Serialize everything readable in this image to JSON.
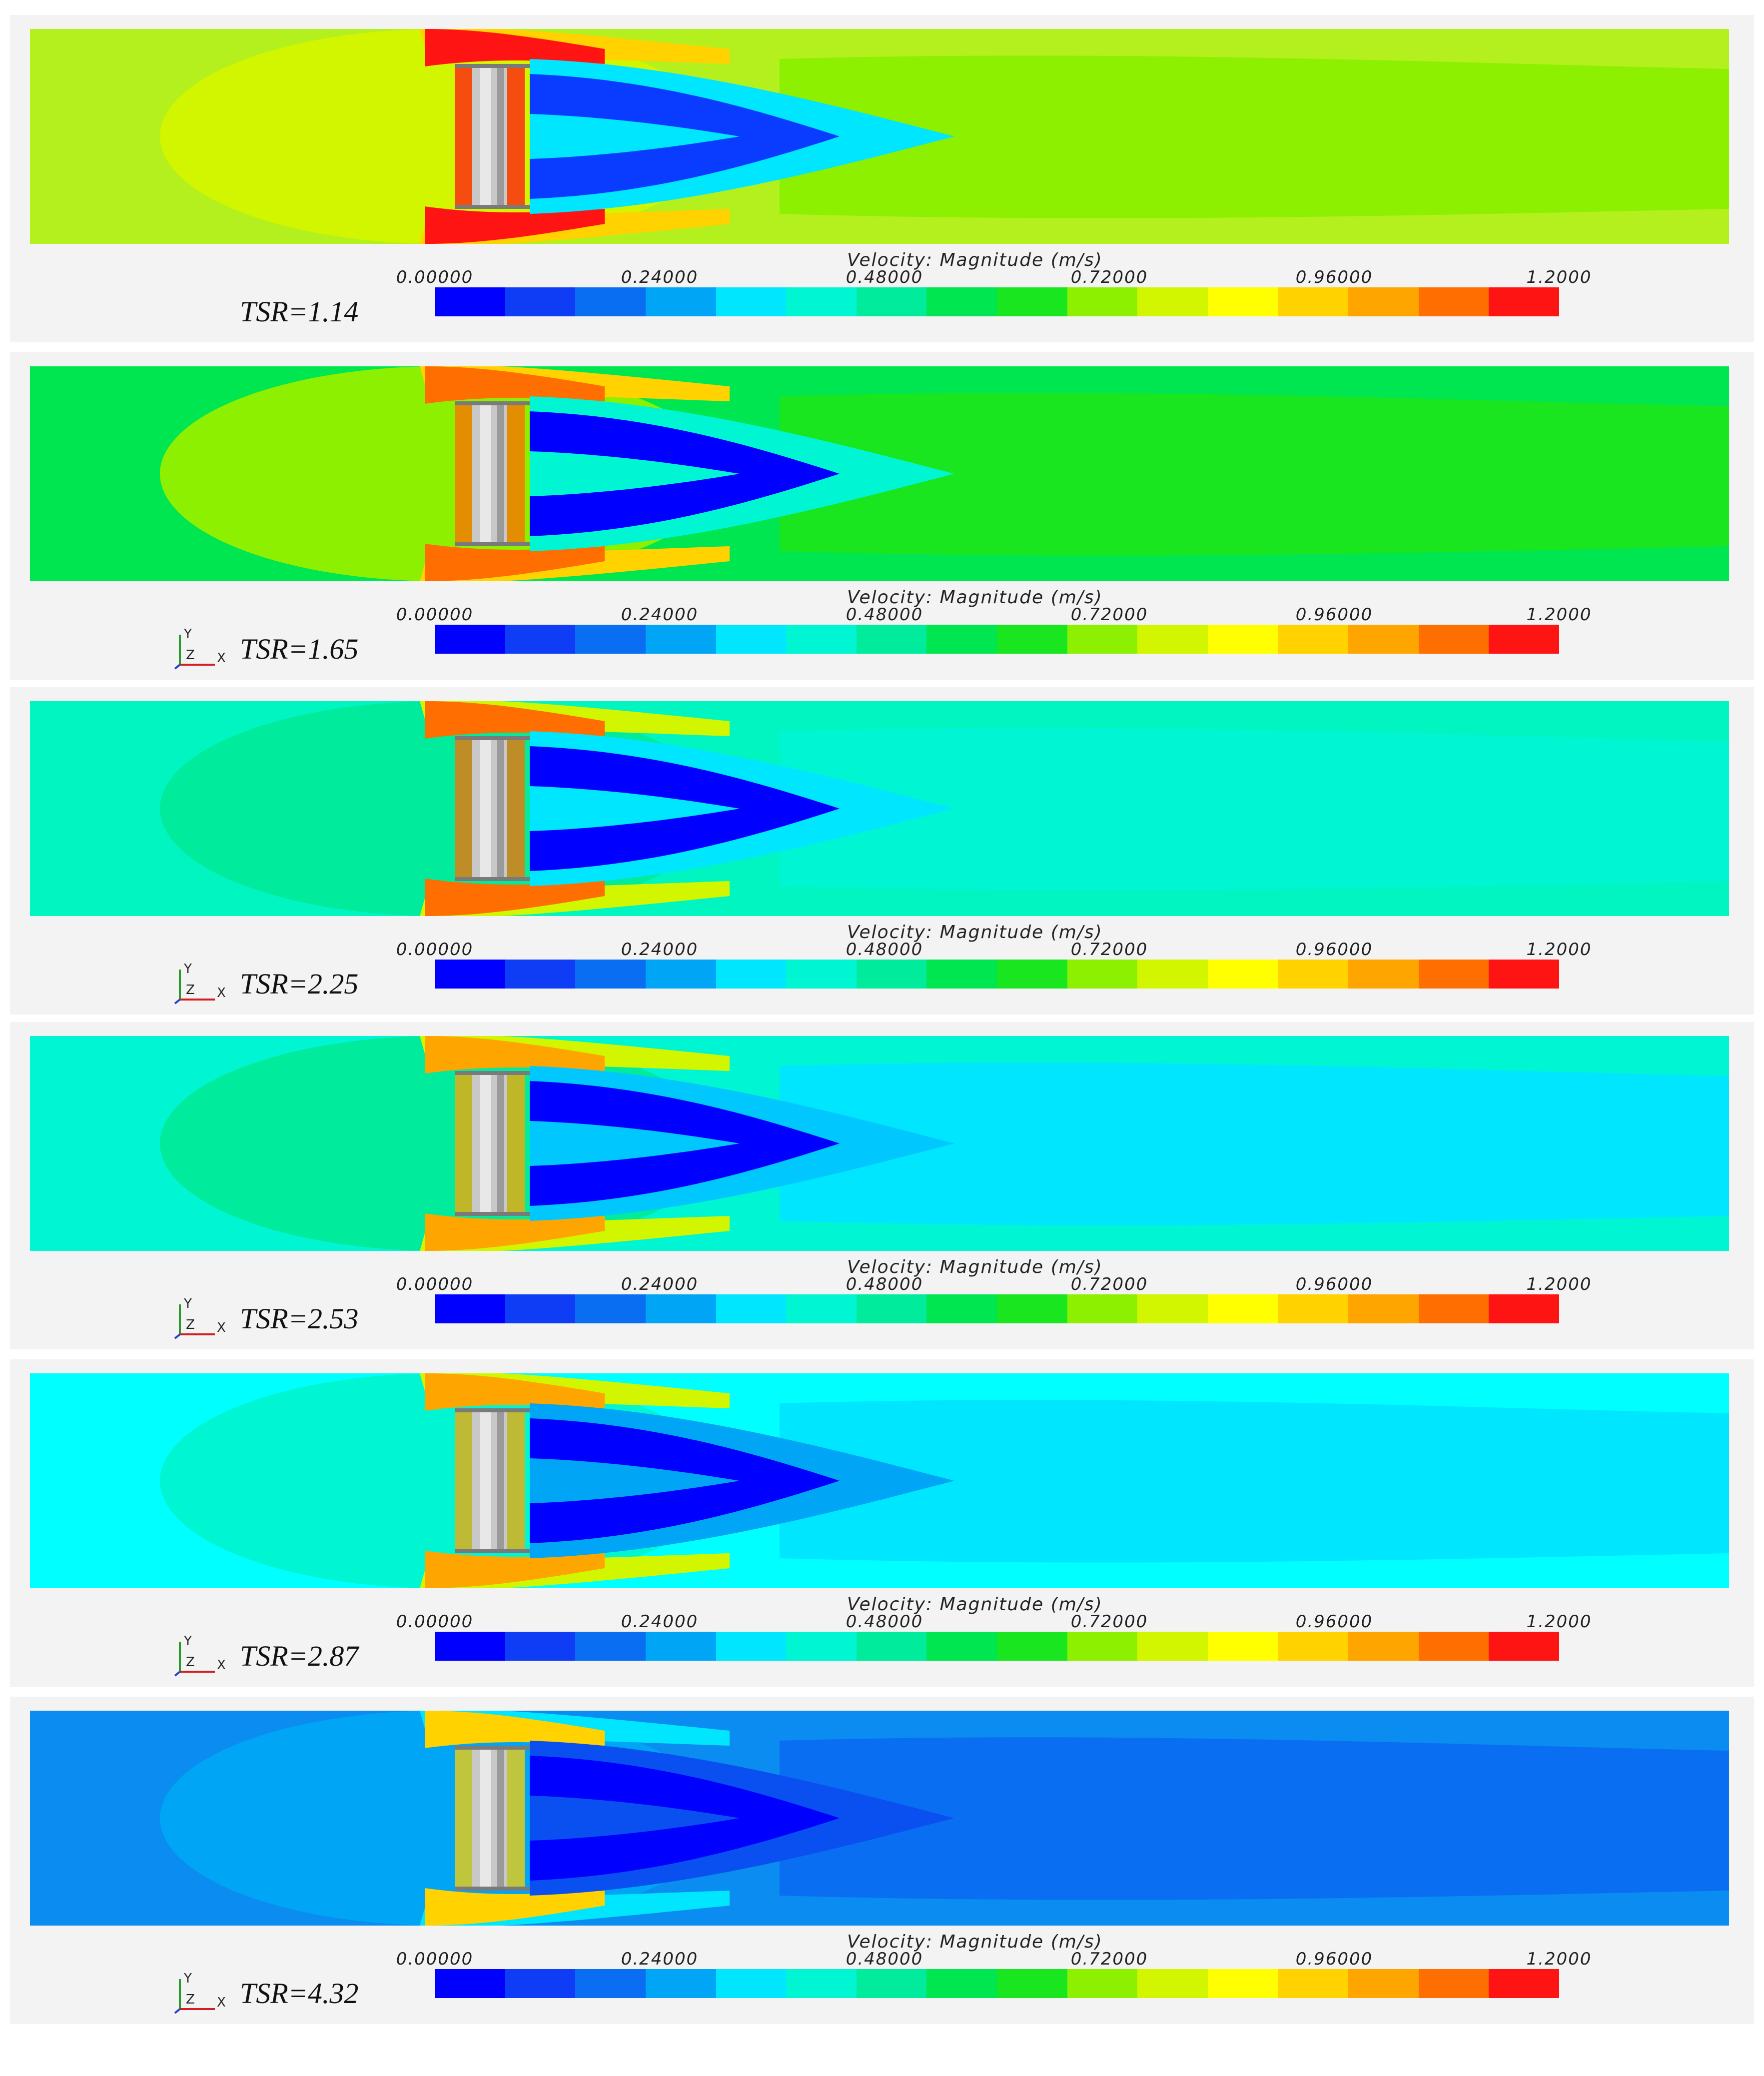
{
  "figure": {
    "legend_title": "Velocity: Magnitude (m/s)",
    "ticks": [
      "0.00000",
      "0.24000",
      "0.48000",
      "0.72000",
      "0.96000",
      "1.2000"
    ],
    "colormap": [
      "#0000ff",
      "#0f3cf5",
      "#0a6ef2",
      "#00a5f5",
      "#00e6ff",
      "#00f5d2",
      "#00eb9b",
      "#00e650",
      "#19e61e",
      "#8cf000",
      "#d2f500",
      "#ffff00",
      "#ffd200",
      "#ffa500",
      "#ff6e00",
      "#ff1414"
    ],
    "axes_labels": {
      "y": "Y",
      "z": "Z",
      "x": "X"
    },
    "panels": [
      {
        "label": "TSR=1.14",
        "axes": false,
        "bg": "#b4f01e",
        "near": "#d2f500",
        "mid": "#8cf000",
        "wake": "#00e6ff",
        "core": "#0a3cff",
        "tip": "#ff1414",
        "shear": "#ffd200"
      },
      {
        "label": "TSR=1.65",
        "axes": true,
        "bg": "#00e650",
        "near": "#8cf000",
        "mid": "#19e61e",
        "wake": "#00f5d2",
        "core": "#0000ff",
        "tip": "#ff6e00",
        "shear": "#ffd200"
      },
      {
        "label": "TSR=2.25",
        "axes": true,
        "bg": "#00f5c0",
        "near": "#00eb9b",
        "mid": "#00f5d2",
        "wake": "#00e6ff",
        "core": "#0000ff",
        "tip": "#ff6e00",
        "shear": "#d2f500"
      },
      {
        "label": "TSR=2.53",
        "axes": true,
        "bg": "#00f5d2",
        "near": "#00eb9b",
        "mid": "#00e6ff",
        "wake": "#00c8ff",
        "core": "#0000ff",
        "tip": "#ffa500",
        "shear": "#d2f500"
      },
      {
        "label": "TSR=2.87",
        "axes": true,
        "bg": "#00ffff",
        "near": "#00f5d2",
        "mid": "#00e6ff",
        "wake": "#00a5f5",
        "core": "#0000ff",
        "tip": "#ffa500",
        "shear": "#d2f500"
      },
      {
        "label": "TSR=4.32",
        "axes": true,
        "bg": "#0a8cf0",
        "near": "#00a5f5",
        "mid": "#0a6ef2",
        "wake": "#0a50f0",
        "core": "#0000ff",
        "tip": "#ffd200",
        "shear": "#00e6ff"
      }
    ]
  }
}
